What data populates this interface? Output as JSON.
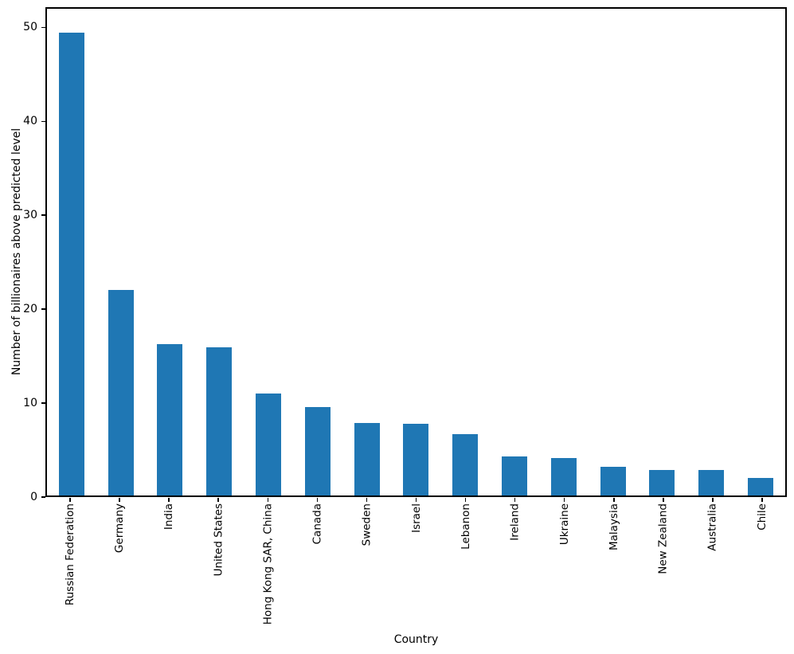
{
  "figure": {
    "background_color": "#ffffff",
    "bar_color": "#1f77b4",
    "spine_color": "#000000",
    "text_color": "#000000"
  },
  "chart_data": {
    "type": "bar",
    "title": "",
    "xlabel": "Country",
    "ylabel": "Number of billionaires above predicted level",
    "categories": [
      "Russian Federation",
      "Germany",
      "India",
      "United States",
      "Hong Kong SAR, China",
      "Canada",
      "Sweden",
      "Israel",
      "Lebanon",
      "Ireland",
      "Ukraine",
      "Malaysia",
      "New Zealand",
      "Australia",
      "Chile"
    ],
    "values": [
      49.6,
      22.0,
      16.2,
      15.9,
      10.9,
      9.5,
      7.8,
      7.7,
      6.6,
      4.2,
      4.0,
      3.1,
      2.75,
      2.7,
      1.9
    ],
    "ylim": [
      0,
      52.15
    ],
    "yticks": [
      0,
      10,
      20,
      30,
      40,
      50
    ],
    "grid": false,
    "legend": "none",
    "bar_orientation": "vertical",
    "x_tick_label_rotation": 90
  }
}
